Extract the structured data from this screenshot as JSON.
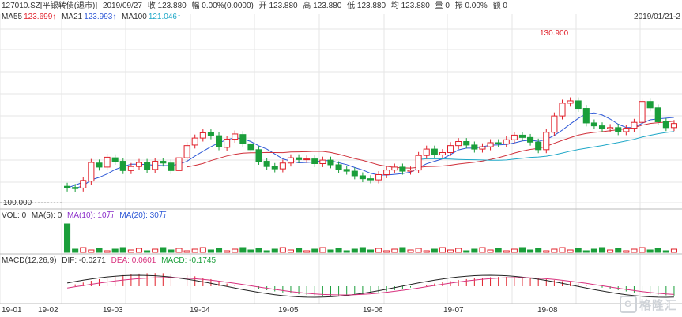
{
  "header": {
    "code": "127010.SZ[平银转债(退市)]",
    "date": "2019/09/27",
    "close": "收 123.880",
    "amplitude": "幅 0.00%(0.0000)",
    "open": "开 123.880",
    "high": "高 123.880",
    "low": "低 123.880",
    "avg": "均 123.880",
    "volume": "量 0",
    "swing": "振 0.00%",
    "amount": "额 0"
  },
  "ma_row": {
    "ma55": "MA55",
    "ma55_val": "123.699↑",
    "ma21": "MA21",
    "ma21_val": "123.993↑",
    "ma100": "MA100",
    "ma100_val": "121.046↑"
  },
  "top_right_date": "2019/01/21-2",
  "price_labels": {
    "high_mark": "130.900",
    "low_mark": "100.000"
  },
  "vol_row": {
    "label": "VOL: 0",
    "ma5": "MA(5): 0",
    "ma10": "MA(10): 10万",
    "ma20": "MA(20): 30万"
  },
  "macd_row": {
    "label": "MACD(12,26,9)",
    "dif": "DIF: -0.0271",
    "dea": "DEA: 0.0601",
    "macd": "MACD: -0.1745"
  },
  "x_axis": [
    "19-01",
    "19-02",
    "19-03",
    "19-04",
    "19-05",
    "19-06",
    "19-07",
    "19-08"
  ],
  "logo_text": "格隆汇",
  "colors": {
    "up": "#e0202a",
    "down": "#1a9e3a",
    "ma55": "#d0303a",
    "ma21": "#2c57d6",
    "ma100": "#20a8c8",
    "grid": "#e6e6e6"
  },
  "chart_data": {
    "type": "candlestick",
    "price_series": [
      {
        "x": "19-02",
        "open": 103.5,
        "close": 103.2
      },
      {
        "x": "19-02",
        "open": 103.3,
        "close": 103.1
      },
      {
        "x": "19-02",
        "open": 103.2,
        "close": 104.5
      },
      {
        "x": "19-02",
        "open": 104.4,
        "close": 107.6
      },
      {
        "x": "19-02",
        "open": 107.5,
        "close": 106.8
      },
      {
        "x": "19-03",
        "open": 106.8,
        "close": 108.5
      },
      {
        "x": "19-03",
        "open": 108.4,
        "close": 107.8
      },
      {
        "x": "19-03",
        "open": 107.8,
        "close": 106.2
      },
      {
        "x": "19-03",
        "open": 106.2,
        "close": 106.9
      },
      {
        "x": "19-03",
        "open": 106.9,
        "close": 107.6
      },
      {
        "x": "19-03",
        "open": 107.6,
        "close": 106.4
      },
      {
        "x": "19-03",
        "open": 106.4,
        "close": 107.8
      },
      {
        "x": "19-03",
        "open": 107.8,
        "close": 107.5
      },
      {
        "x": "19-04",
        "open": 107.5,
        "close": 106.2
      },
      {
        "x": "19-04",
        "open": 106.2,
        "close": 108.4
      },
      {
        "x": "19-04",
        "open": 108.4,
        "close": 110.5
      },
      {
        "x": "19-04",
        "open": 110.6,
        "close": 111.8
      },
      {
        "x": "19-04",
        "open": 111.8,
        "close": 112.7
      },
      {
        "x": "19-04",
        "open": 112.7,
        "close": 112.2
      },
      {
        "x": "19-04",
        "open": 112.2,
        "close": 110.3
      },
      {
        "x": "19-04",
        "open": 110.2,
        "close": 111.6
      },
      {
        "x": "19-04",
        "open": 111.6,
        "close": 112.5
      },
      {
        "x": "19-04",
        "open": 112.4,
        "close": 110.8
      },
      {
        "x": "19-05",
        "open": 110.8,
        "close": 109.8
      },
      {
        "x": "19-05",
        "open": 109.8,
        "close": 107.8
      },
      {
        "x": "19-05",
        "open": 107.8,
        "close": 106.9
      },
      {
        "x": "19-05",
        "open": 106.9,
        "close": 106.5
      },
      {
        "x": "19-05",
        "open": 106.5,
        "close": 107.5
      },
      {
        "x": "19-05",
        "open": 107.5,
        "close": 108.4
      },
      {
        "x": "19-05",
        "open": 108.4,
        "close": 108.1
      },
      {
        "x": "19-05",
        "open": 108.1,
        "close": 108.2
      },
      {
        "x": "19-05",
        "open": 108.2,
        "close": 107.4
      },
      {
        "x": "19-05",
        "open": 107.4,
        "close": 108.0
      },
      {
        "x": "19-06",
        "open": 108.0,
        "close": 107.2
      },
      {
        "x": "19-06",
        "open": 107.2,
        "close": 106.4
      },
      {
        "x": "19-06",
        "open": 106.4,
        "close": 106.1
      },
      {
        "x": "19-06",
        "open": 106.1,
        "close": 105.3
      },
      {
        "x": "19-06",
        "open": 105.3,
        "close": 104.8
      },
      {
        "x": "19-06",
        "open": 104.8,
        "close": 104.6
      },
      {
        "x": "19-06",
        "open": 104.6,
        "close": 105.5
      },
      {
        "x": "19-06",
        "open": 105.5,
        "close": 106.3
      },
      {
        "x": "19-06",
        "open": 106.3,
        "close": 106.8
      },
      {
        "x": "19-06",
        "open": 106.8,
        "close": 106.1
      },
      {
        "x": "19-06",
        "open": 106.1,
        "close": 106.3
      },
      {
        "x": "19-07",
        "open": 106.3,
        "close": 108.8
      },
      {
        "x": "19-07",
        "open": 108.8,
        "close": 109.9
      },
      {
        "x": "19-07",
        "open": 109.9,
        "close": 108.9
      },
      {
        "x": "19-07",
        "open": 108.9,
        "close": 109.3
      },
      {
        "x": "19-07",
        "open": 109.3,
        "close": 110.5
      },
      {
        "x": "19-07",
        "open": 110.5,
        "close": 111.2
      },
      {
        "x": "19-07",
        "open": 111.2,
        "close": 110.6
      },
      {
        "x": "19-07",
        "open": 110.6,
        "close": 109.9
      },
      {
        "x": "19-07",
        "open": 109.9,
        "close": 110.3
      },
      {
        "x": "19-07",
        "open": 110.3,
        "close": 111.0
      },
      {
        "x": "19-07",
        "open": 111.0,
        "close": 110.8
      },
      {
        "x": "19-07",
        "open": 110.8,
        "close": 111.5
      },
      {
        "x": "19-07",
        "open": 111.5,
        "close": 112.3
      },
      {
        "x": "19-07",
        "open": 112.3,
        "close": 111.9
      },
      {
        "x": "19-07",
        "open": 111.9,
        "close": 111.1
      },
      {
        "x": "19-08",
        "open": 111.1,
        "close": 109.8
      },
      {
        "x": "19-08",
        "open": 109.8,
        "close": 112.8
      },
      {
        "x": "19-08",
        "open": 112.8,
        "close": 115.6
      },
      {
        "x": "19-08",
        "open": 115.6,
        "close": 117.8
      },
      {
        "x": "19-08",
        "open": 117.8,
        "close": 118.2
      },
      {
        "x": "19-08",
        "open": 118.2,
        "close": 116.9
      },
      {
        "x": "19-08",
        "open": 116.9,
        "close": 114.4
      },
      {
        "x": "19-08",
        "open": 114.4,
        "close": 113.9
      },
      {
        "x": "19-08",
        "open": 113.9,
        "close": 113.4
      },
      {
        "x": "19-08",
        "open": 113.4,
        "close": 113.6
      },
      {
        "x": "19-08",
        "open": 113.6,
        "close": 112.9
      },
      {
        "x": "19-08",
        "open": 112.9,
        "close": 113.5
      },
      {
        "x": "19-08",
        "open": 113.5,
        "close": 114.5
      },
      {
        "x": "19-08",
        "open": 114.5,
        "close": 118.1
      },
      {
        "x": "19-08",
        "open": 118.1,
        "close": 117.0
      },
      {
        "x": "19-08",
        "open": 117.0,
        "close": 114.6
      },
      {
        "x": "19-08",
        "open": 114.6,
        "close": 113.6
      },
      {
        "x": "19-08",
        "open": 113.6,
        "close": 114.3
      }
    ],
    "ylim": [
      100,
      131.5
    ]
  }
}
